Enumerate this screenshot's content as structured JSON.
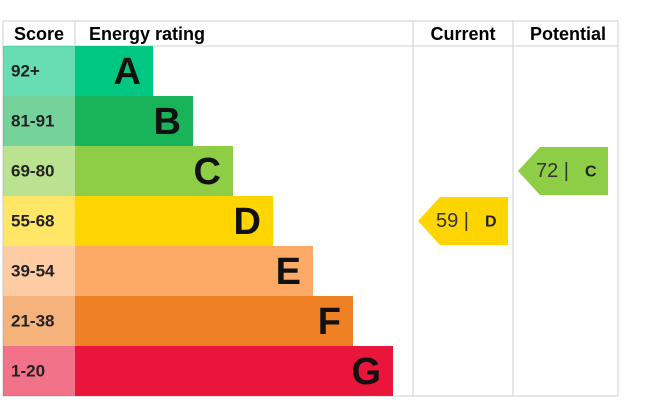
{
  "header": {
    "score": "Score",
    "rating": "Energy rating",
    "current": "Current",
    "potential": "Potential"
  },
  "bands": [
    {
      "score": "92+",
      "letter": "A",
      "color": "#00c781"
    },
    {
      "score": "81-91",
      "letter": "B",
      "color": "#19b459"
    },
    {
      "score": "69-80",
      "letter": "C",
      "color": "#8dce46"
    },
    {
      "score": "55-68",
      "letter": "D",
      "color": "#ffd500"
    },
    {
      "score": "39-54",
      "letter": "E",
      "color": "#fcaa65"
    },
    {
      "score": "21-38",
      "letter": "F",
      "color": "#ef8023"
    },
    {
      "score": "1-20",
      "letter": "G",
      "color": "#e9153b"
    }
  ],
  "current": {
    "label": "59 |",
    "letter": "D"
  },
  "potential": {
    "label": "72 |",
    "letter": "C"
  }
}
